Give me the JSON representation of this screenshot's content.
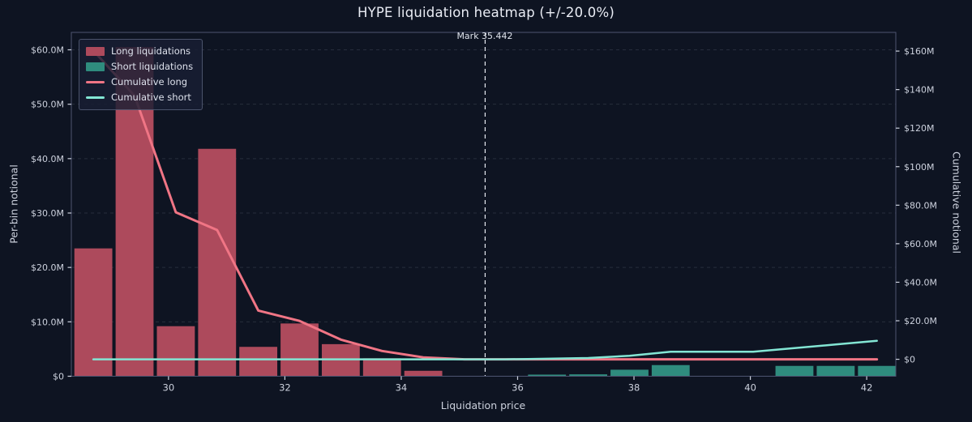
{
  "title": "HYPE liquidation heatmap (+/-20.0%)",
  "mark_annotation": "Mark 35.442",
  "axes": {
    "x_label": "Liquidation price",
    "y_left_label": "Per-bin notional",
    "y_right_label": "Cumulative notional"
  },
  "legend": {
    "items": [
      {
        "label": "Long liquidations",
        "swatch": "bar",
        "color": "#ad4a5c"
      },
      {
        "label": "Short liquidations",
        "swatch": "bar",
        "color": "#2f8c7e"
      },
      {
        "label": "Cumulative long",
        "swatch": "line",
        "color": "#f07585"
      },
      {
        "label": "Cumulative short",
        "swatch": "line",
        "color": "#83e6d4"
      }
    ]
  },
  "colors": {
    "background": "#0e1422",
    "spine": "#4d5470",
    "grid": "rgba(190,200,220,0.14)",
    "tick_text": "#ccd1dd",
    "title_text": "#e9ecf4",
    "mark_line": "#e8ebf3",
    "long_bar": "#ad4a5c",
    "short_bar": "#2f8c7e",
    "cum_long_line": "#f07585",
    "cum_short_line": "#83e6d4"
  },
  "chart_data": {
    "type": "bar",
    "subtype": "bars-plus-cumulative-lines",
    "title": "HYPE liquidation heatmap (+/-20.0%)",
    "xlabel": "Liquidation price",
    "ylabel_left": "Per-bin notional",
    "ylabel_right": "Cumulative notional",
    "mark_price": 35.442,
    "range_pct": 20.0,
    "grid": "horizontal-dashed",
    "legend_position": "upper-left",
    "x_domain": [
      28.33,
      42.5
    ],
    "x_ticks": [
      30,
      32,
      34,
      36,
      38,
      40,
      42
    ],
    "y_left": {
      "domain": [
        0,
        63.2
      ],
      "tick_values": [
        0,
        10,
        20,
        30,
        40,
        50,
        60
      ],
      "tick_labels": [
        "$0",
        "$10.0M",
        "$20.0M",
        "$30.0M",
        "$40.0M",
        "$50.0M",
        "$60.0M"
      ]
    },
    "y_right": {
      "domain": [
        -8.8,
        169.7
      ],
      "tick_values": [
        0,
        20,
        40,
        60,
        80,
        100,
        120,
        140,
        160
      ],
      "tick_labels": [
        "$0",
        "$20.0M",
        "$40.0M",
        "$60.0M",
        "$80.0M",
        "$100M",
        "$120M",
        "$140M",
        "$160M"
      ]
    },
    "bin_width": 0.7088,
    "bins": [
      28.708,
      29.417,
      30.126,
      30.835,
      31.543,
      32.252,
      32.961,
      33.67,
      34.379,
      35.088,
      35.796,
      36.505,
      37.214,
      37.923,
      38.631,
      39.34,
      40.049,
      40.758,
      41.467,
      42.176
    ],
    "series": [
      {
        "name": "Long liquidations",
        "type": "bar",
        "axis": "left",
        "color": "#ad4a5c",
        "values_musd": [
          23.5,
          60.5,
          9.2,
          41.8,
          5.4,
          9.7,
          5.9,
          3.3,
          1.0,
          0,
          0,
          0,
          0,
          0,
          0,
          0,
          0,
          0,
          0,
          0
        ]
      },
      {
        "name": "Short liquidations",
        "type": "bar",
        "axis": "left",
        "color": "#2f8c7e",
        "values_musd": [
          0,
          0,
          0,
          0,
          0,
          0,
          0,
          0,
          0,
          0,
          0,
          0.3,
          0.35,
          1.2,
          2.05,
          0,
          0,
          1.9,
          1.9,
          1.9
        ]
      },
      {
        "name": "Cumulative long",
        "type": "line",
        "axis": "right",
        "color": "#f07585",
        "values_musd": [
          160.3,
          136.8,
          76.3,
          67.1,
          25.3,
          19.9,
          10.2,
          4.3,
          1.0,
          0,
          0,
          0,
          0,
          0,
          0,
          0,
          0,
          0,
          0,
          0
        ]
      },
      {
        "name": "Cumulative short",
        "type": "line",
        "axis": "right",
        "color": "#83e6d4",
        "values_musd": [
          0,
          0,
          0,
          0,
          0,
          0,
          0,
          0,
          0,
          0,
          0,
          0.3,
          0.65,
          1.85,
          3.9,
          3.9,
          3.9,
          5.8,
          7.7,
          9.6
        ]
      }
    ]
  }
}
